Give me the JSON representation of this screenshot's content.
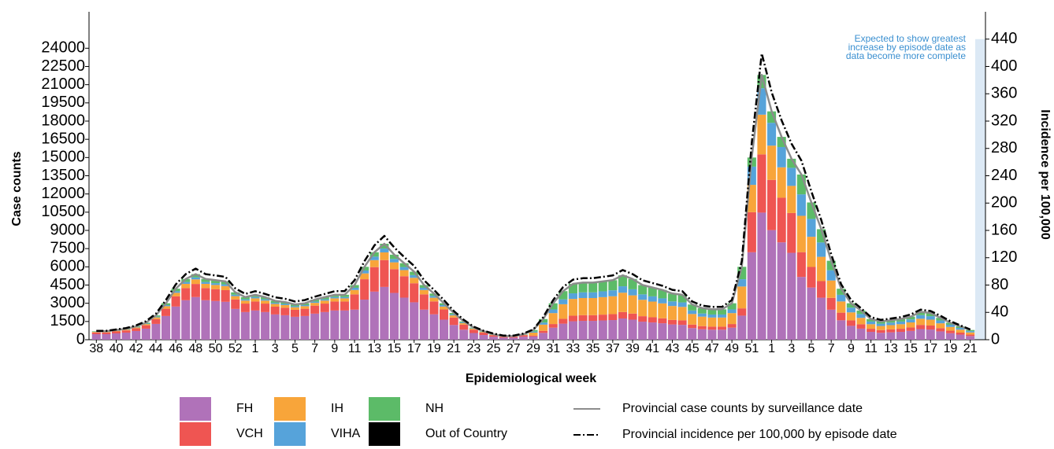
{
  "chart_data": {
    "type": "bar",
    "stacked": true,
    "x_label": "Epidemiological week",
    "y_label": "Case counts",
    "y2_label": "Incidence per 100,000",
    "annotation": [
      "Expected to show greatest",
      "increase by episode date as",
      "data become more complete"
    ],
    "categories": [
      "38",
      null,
      "40",
      null,
      "42",
      null,
      "44",
      null,
      "46",
      null,
      "48",
      null,
      "50",
      null,
      "52",
      null,
      "1",
      null,
      "3",
      null,
      "5",
      null,
      "7",
      null,
      "9",
      null,
      "11",
      null,
      "13",
      null,
      "15",
      null,
      "17",
      null,
      "19",
      null,
      "21",
      null,
      "23",
      null,
      "25",
      null,
      "27",
      null,
      "29",
      null,
      "31",
      null,
      "33",
      null,
      "35",
      null,
      "37",
      null,
      "39",
      null,
      "41",
      null,
      "43",
      null,
      "45",
      null,
      "47",
      null,
      "49",
      null,
      "51",
      null,
      "1",
      null,
      "3",
      null,
      "5",
      null,
      "7",
      null,
      "9",
      null,
      "11",
      null,
      "13",
      null,
      "15",
      null,
      "17",
      null,
      "19",
      null,
      "21"
    ],
    "ylim": [
      0,
      27000
    ],
    "yticks": [
      0,
      1500,
      3000,
      4500,
      6000,
      7500,
      9000,
      10500,
      12000,
      13500,
      15000,
      16500,
      18000,
      19500,
      21000,
      22500,
      24000
    ],
    "y2lim": [
      0,
      480
    ],
    "y2ticks": [
      0,
      40,
      80,
      120,
      160,
      200,
      240,
      280,
      320,
      360,
      400,
      440
    ],
    "series": [
      {
        "name": "FH",
        "color": "#b072b9",
        "values": [
          455,
          455,
          520,
          585,
          715,
          910,
          1300,
          1950,
          2730,
          3250,
          3510,
          3250,
          3185,
          3120,
          2535,
          2275,
          2405,
          2275,
          2080,
          2015,
          1885,
          1950,
          2145,
          2275,
          2405,
          2405,
          2475,
          3300,
          3960,
          4345,
          3850,
          3465,
          3080,
          2475,
          2090,
          1650,
          1210,
          825,
          550,
          385,
          248,
          165,
          165,
          248,
          264,
          561,
          990,
          1320,
          1518,
          1551,
          1551,
          1584,
          1617,
          1749,
          1650,
          1485,
          1419,
          1353,
          1254,
          1221,
          957,
          858,
          825,
          825,
          990,
          1980,
          7200,
          10464,
          9024,
          8016,
          7152,
          5168,
          4294,
          3458,
          2470,
          1596,
          1140,
          912,
          646,
          570,
          608,
          646,
          722,
          874,
          836,
          684,
          532,
          418,
          304
        ]
      },
      {
        "name": "VCH",
        "color": "#ef5552",
        "values": [
          140,
          140,
          160,
          180,
          220,
          280,
          400,
          600,
          840,
          1000,
          1080,
          1000,
          980,
          960,
          780,
          700,
          740,
          700,
          640,
          620,
          580,
          600,
          660,
          700,
          740,
          740,
          1260,
          1680,
          2016,
          2212,
          1960,
          1764,
          1568,
          1260,
          1064,
          840,
          616,
          420,
          280,
          196,
          126,
          84,
          84,
          126,
          80,
          170,
          300,
          400,
          460,
          470,
          470,
          480,
          490,
          530,
          500,
          450,
          430,
          410,
          380,
          370,
          290,
          260,
          250,
          250,
          300,
          600,
          3300,
          4796,
          4136,
          3674,
          3278,
          2040,
          1695,
          1365,
          975,
          630,
          450,
          360,
          255,
          225,
          240,
          255,
          285,
          345,
          330,
          270,
          210,
          165,
          120
        ]
      },
      {
        "name": "IH",
        "color": "#f8a53a",
        "values": [
          49,
          49,
          56,
          63,
          77,
          98,
          140,
          210,
          294,
          350,
          378,
          350,
          343,
          336,
          273,
          245,
          259,
          245,
          224,
          217,
          203,
          210,
          231,
          245,
          259,
          259,
          360,
          480,
          576,
          632,
          560,
          504,
          448,
          360,
          304,
          240,
          176,
          120,
          80,
          56,
          36,
          24,
          24,
          36,
          240,
          510,
          900,
          1200,
          1380,
          1410,
          1410,
          1440,
          1470,
          1590,
          1500,
          1350,
          1290,
          1230,
          1140,
          1110,
          870,
          780,
          750,
          750,
          900,
          1800,
          2250,
          3270,
          2820,
          2505,
          2235,
          2992,
          2486,
          2002,
          1430,
          924,
          660,
          528,
          374,
          330,
          352,
          374,
          418,
          506,
          484,
          396,
          308,
          242,
          176
        ]
      },
      {
        "name": "VIHA",
        "color": "#56a3da",
        "values": [
          21,
          21,
          24,
          27,
          33,
          42,
          60,
          90,
          126,
          150,
          162,
          150,
          147,
          144,
          117,
          105,
          111,
          105,
          96,
          93,
          87,
          90,
          99,
          105,
          111,
          111,
          180,
          240,
          288,
          316,
          280,
          252,
          224,
          180,
          152,
          120,
          88,
          60,
          40,
          28,
          18,
          12,
          12,
          18,
          80,
          170,
          300,
          400,
          460,
          470,
          470,
          480,
          490,
          530,
          500,
          450,
          430,
          410,
          380,
          370,
          290,
          260,
          250,
          250,
          300,
          600,
          1500,
          2180,
          1880,
          1670,
          1490,
          1768,
          1469,
          1183,
          845,
          546,
          390,
          312,
          221,
          195,
          208,
          221,
          247,
          299,
          286,
          234,
          182,
          143,
          104
        ]
      },
      {
        "name": "NH",
        "color": "#5cbb68",
        "values": [
          35,
          35,
          40,
          45,
          55,
          70,
          100,
          150,
          210,
          250,
          270,
          250,
          245,
          240,
          195,
          175,
          185,
          175,
          160,
          155,
          145,
          150,
          165,
          175,
          185,
          185,
          225,
          300,
          360,
          395,
          350,
          315,
          280,
          225,
          190,
          150,
          110,
          75,
          50,
          35,
          23,
          15,
          15,
          23,
          136,
          289,
          510,
          680,
          782,
          799,
          799,
          816,
          833,
          901,
          850,
          765,
          731,
          697,
          646,
          629,
          493,
          442,
          425,
          425,
          510,
          1020,
          750,
          1090,
          940,
          835,
          745,
          1632,
          1356,
          1092,
          780,
          504,
          360,
          288,
          204,
          180,
          192,
          204,
          228,
          276,
          264,
          216,
          168,
          132,
          96
        ]
      },
      {
        "name": "Out of Country",
        "color": "#000000",
        "values": [
          0,
          0,
          0,
          0,
          0,
          0,
          0,
          0,
          0,
          0,
          0,
          0,
          0,
          0,
          0,
          0,
          0,
          0,
          0,
          0,
          0,
          0,
          0,
          0,
          0,
          0,
          0,
          0,
          0,
          0,
          0,
          0,
          0,
          0,
          0,
          0,
          0,
          0,
          0,
          0,
          0,
          0,
          0,
          0,
          0,
          0,
          0,
          0,
          0,
          0,
          0,
          0,
          0,
          0,
          0,
          0,
          0,
          0,
          0,
          0,
          0,
          0,
          0,
          0,
          0,
          0,
          0,
          0,
          0,
          0,
          0,
          0,
          0,
          0,
          0,
          0,
          0,
          0,
          0,
          0,
          0,
          0,
          0,
          0,
          0,
          0,
          0,
          0,
          0
        ]
      },
      {
        "name": "Provincial case counts by surveillance date",
        "type": "line",
        "color": "#8c8c8c",
        "values": [
          700,
          700,
          800,
          900,
          1100,
          1400,
          2000,
          3000,
          4200,
          5000,
          5400,
          5000,
          4900,
          4800,
          3900,
          3500,
          3700,
          3500,
          3200,
          3100,
          2900,
          3000,
          3300,
          3500,
          3700,
          3700,
          4500,
          6000,
          7200,
          7900,
          7000,
          6300,
          5600,
          4500,
          3800,
          3000,
          2200,
          1500,
          1000,
          700,
          450,
          300,
          300,
          450,
          800,
          1700,
          3000,
          4000,
          4600,
          4700,
          4700,
          4800,
          4900,
          5300,
          5000,
          4500,
          4300,
          4100,
          3800,
          3700,
          2900,
          2600,
          2500,
          2500,
          3000,
          6000,
          15000,
          21800,
          18800,
          16700,
          14900,
          13600,
          11300,
          9100,
          6500,
          4200,
          3000,
          2400,
          1700,
          1500,
          1600,
          1700,
          1900,
          2300,
          2200,
          1800,
          1400,
          1100,
          800
        ]
      },
      {
        "name": "Provincial incidence per 100,000 by episode date",
        "type": "line",
        "dashed": true,
        "axis": "y2",
        "color": "#000000",
        "values": [
          13,
          13,
          15,
          17,
          21,
          27,
          38,
          58,
          81,
          96,
          104,
          96,
          94,
          92,
          75,
          67,
          71,
          67,
          62,
          60,
          56,
          58,
          63,
          67,
          71,
          71,
          87,
          115,
          138,
          152,
          135,
          121,
          108,
          87,
          73,
          58,
          42,
          29,
          19,
          13,
          9,
          6,
          6,
          9,
          15,
          33,
          58,
          77,
          88,
          90,
          90,
          92,
          94,
          102,
          96,
          87,
          83,
          79,
          73,
          71,
          56,
          50,
          48,
          48,
          58,
          115,
          288,
          419,
          362,
          321,
          287,
          262,
          217,
          175,
          125,
          81,
          58,
          46,
          33,
          29,
          31,
          33,
          37,
          44,
          42,
          35,
          27,
          21,
          15
        ]
      }
    ]
  }
}
